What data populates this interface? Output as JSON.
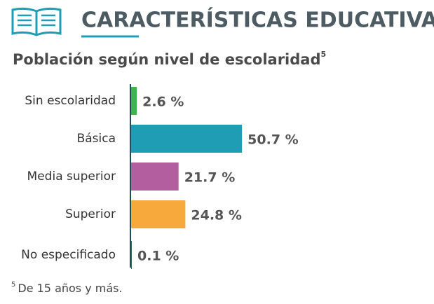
{
  "chart_data": {
    "type": "bar",
    "orientation": "horizontal",
    "title": "CARACTERÍSTICAS EDUCATIVAS",
    "subtitle": "Población según nivel de escolaridad",
    "subtitle_mark": "5",
    "categories": [
      "Sin escolaridad",
      "Básica",
      "Media superior",
      "Superior",
      "No especificado"
    ],
    "values": [
      2.6,
      50.7,
      21.7,
      24.8,
      0.1
    ],
    "value_labels": [
      "2.6 %",
      "50.7 %",
      "21.7 %",
      "24.8 %",
      "0.1 %"
    ],
    "colors": [
      "#3db54a",
      "#1f9db5",
      "#b35e9f",
      "#f8a93c",
      "#1b6f79"
    ],
    "footnote_mark": "5",
    "footnote": "De 15 años y más."
  }
}
